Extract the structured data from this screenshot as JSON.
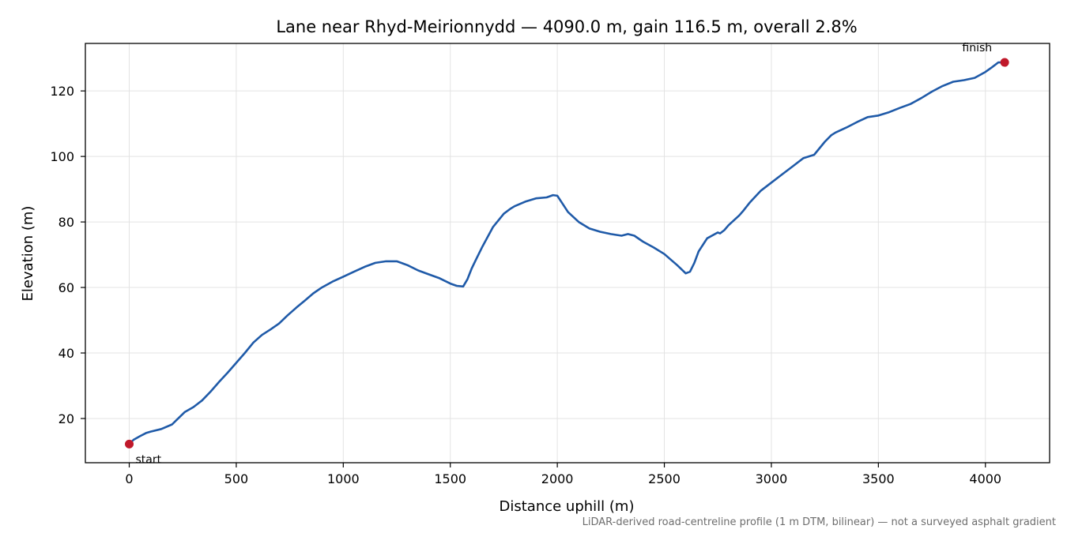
{
  "chart_data": {
    "type": "line",
    "title": "Lane near Rhyd-Meirionnydd — 4090.0 m, gain 116.5 m, overall 2.8%",
    "xlabel": "Distance uphill (m)",
    "ylabel": "Elevation (m)",
    "xlim": [
      -205,
      4300
    ],
    "ylim": [
      6.5,
      134.5
    ],
    "xticks": [
      0,
      500,
      1000,
      1500,
      2000,
      2500,
      3000,
      3500,
      4000
    ],
    "yticks": [
      20,
      40,
      60,
      80,
      100,
      120
    ],
    "grid": true,
    "line_color": "#1f5aa8",
    "marker_color": "#c0182a",
    "series": [
      {
        "x": [
          0,
          20,
          50,
          80,
          100,
          150,
          200,
          230,
          260,
          300,
          340,
          380,
          420,
          460,
          500,
          540,
          580,
          620,
          660,
          700,
          740,
          780,
          820,
          860,
          900,
          950,
          1000,
          1050,
          1100,
          1150,
          1200,
          1250,
          1300,
          1350,
          1400,
          1450,
          1500,
          1530,
          1560,
          1580,
          1600,
          1620,
          1650,
          1700,
          1750,
          1780,
          1800,
          1850,
          1900,
          1950,
          1980,
          2000,
          2020,
          2050,
          2100,
          2150,
          2200,
          2250,
          2300,
          2330,
          2360,
          2400,
          2450,
          2500,
          2530,
          2560,
          2600,
          2620,
          2640,
          2660,
          2700,
          2750,
          2760,
          2780,
          2800,
          2850,
          2870,
          2900,
          2950,
          3000,
          3050,
          3100,
          3150,
          3200,
          3250,
          3280,
          3300,
          3350,
          3400,
          3450,
          3500,
          3550,
          3600,
          3650,
          3700,
          3750,
          3800,
          3850,
          3900,
          3950,
          4000,
          4030,
          4060,
          4090
        ],
        "y": [
          12.2,
          13.5,
          14.6,
          15.6,
          16.0,
          16.8,
          18.2,
          20.1,
          22.0,
          23.5,
          25.5,
          28.2,
          31.2,
          34.0,
          37.0,
          40.0,
          43.2,
          45.5,
          47.2,
          49.0,
          51.5,
          53.8,
          56.0,
          58.2,
          60.0,
          61.8,
          63.3,
          64.8,
          66.3,
          67.5,
          68.0,
          68.0,
          66.8,
          65.2,
          64.0,
          62.8,
          61.2,
          60.5,
          60.3,
          62.5,
          65.8,
          68.5,
          72.5,
          78.5,
          82.5,
          84.0,
          84.8,
          86.2,
          87.2,
          87.5,
          88.2,
          88.0,
          86.0,
          83.0,
          80.0,
          78.0,
          77.0,
          76.3,
          75.8,
          76.3,
          75.8,
          74.0,
          72.2,
          70.2,
          68.5,
          66.8,
          64.3,
          64.8,
          67.5,
          71.0,
          75.0,
          76.8,
          76.5,
          77.5,
          79.0,
          82.0,
          83.5,
          86.0,
          89.5,
          92.0,
          94.5,
          97.0,
          99.5,
          100.5,
          104.5,
          106.5,
          107.3,
          108.8,
          110.5,
          112.0,
          112.5,
          113.5,
          114.8,
          116.0,
          117.8,
          119.8,
          121.5,
          122.8,
          123.3,
          124.0,
          125.8,
          127.2,
          128.7,
          128.7
        ]
      }
    ],
    "annotations": [
      {
        "text": "start",
        "x": 0,
        "y": 12.2
      },
      {
        "text": "finish",
        "x": 4090,
        "y": 128.7
      }
    ],
    "footnote": "LiDAR-derived road-centreline profile (1 m DTM, bilinear) — not a surveyed asphalt gradient"
  }
}
